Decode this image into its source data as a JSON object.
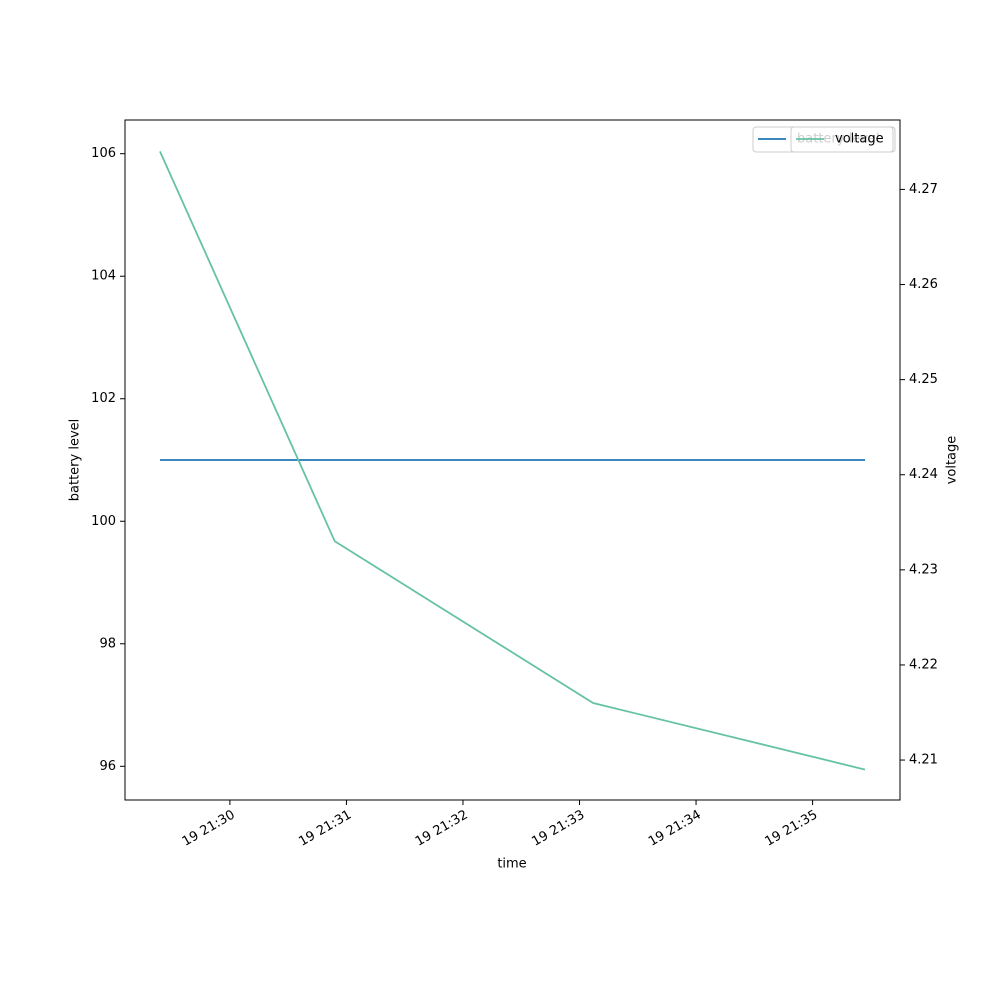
{
  "chart_data": {
    "type": "line",
    "xlabel": "time",
    "ylabel": "battery level",
    "y2label": "voltage",
    "x": [
      "19 21:29:24",
      "19 21:30:54",
      "19 21:33:07",
      "19 21:35:27"
    ],
    "series": [
      {
        "name": "battery level",
        "color": "#1f77b4",
        "values": [
          101,
          101,
          101,
          101
        ]
      },
      {
        "name": "voltage",
        "color": "#66c2a5",
        "axis": "y2",
        "values": [
          4.274,
          4.233,
          4.216,
          4.209
        ]
      }
    ],
    "xlim": [
      "19 21:29:06",
      "19 21:35:45"
    ],
    "xticks": [
      {
        "value": "19 21:30:00",
        "label": "19 21:30"
      },
      {
        "value": "19 21:31:00",
        "label": "19 21:31"
      },
      {
        "value": "19 21:32:00",
        "label": "19 21:32"
      },
      {
        "value": "19 21:33:00",
        "label": "19 21:33"
      },
      {
        "value": "19 21:34:00",
        "label": "19 21:34"
      },
      {
        "value": "19 21:35:00",
        "label": "19 21:35"
      }
    ],
    "ylim": [
      95.45,
      106.55
    ],
    "yticks": [
      96,
      98,
      100,
      102,
      104,
      106
    ],
    "y2lim": [
      4.2058,
      4.2773
    ],
    "y2ticks": [
      4.21,
      4.22,
      4.23,
      4.24,
      4.25,
      4.26,
      4.27
    ],
    "legend": "upper right",
    "grid": false
  }
}
